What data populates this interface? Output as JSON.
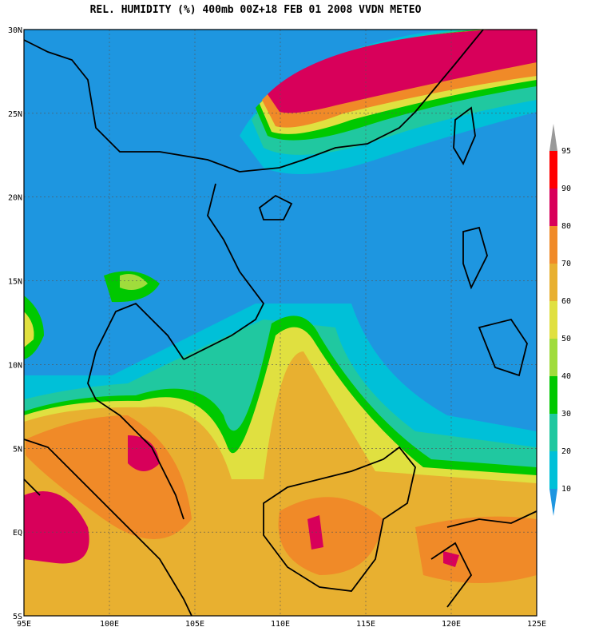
{
  "header": {
    "title": "REL. HUMIDITY (%) 400mb 00Z+18 FEB 01 2008 VVDN METEO"
  },
  "axes": {
    "x_labels": [
      "95E",
      "100E",
      "105E",
      "110E",
      "115E",
      "120E",
      "125E"
    ],
    "y_labels": [
      "30N",
      "25N",
      "20N",
      "15N",
      "10N",
      "5N",
      "EQ",
      "5S"
    ]
  },
  "colorbar": {
    "levels": [
      10,
      20,
      30,
      40,
      50,
      60,
      70,
      80,
      90,
      95
    ],
    "colors": [
      "#1e96e0",
      "#00c0d8",
      "#20c8a0",
      "#00c800",
      "#a0dc3c",
      "#e0e040",
      "#e8b030",
      "#f08a28",
      "#d8005a",
      "#ff0000",
      "#999999"
    ]
  }
}
